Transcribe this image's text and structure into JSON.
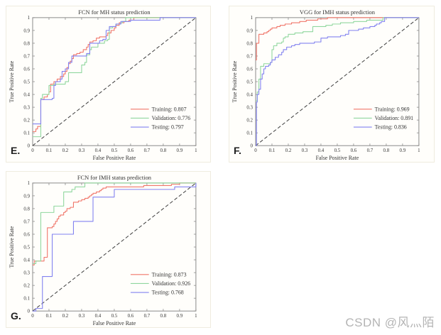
{
  "watermark": "CSDN @风灬陌",
  "colors": {
    "training": "#f0766a",
    "validation": "#90d79e",
    "testing": "#8282f0",
    "diagonal": "#3c3c3c",
    "axis": "#8a8a8a",
    "tick_text": "#333333",
    "title_text": "#1a1a1a",
    "panel_border": "#efecdf"
  },
  "chart_data": [
    {
      "id": "E",
      "panel_label": "E.",
      "type": "line",
      "curve_style": "step-after",
      "title": "FCN for MH status prediction",
      "xlabel": "False Positive Rate",
      "ylabel": "True Positive Rate",
      "xlim": [
        0,
        1
      ],
      "ylim": [
        0,
        1
      ],
      "grid": false,
      "legend_position": "lower-right-inside",
      "diagonal_reference": true,
      "xticks": [
        "0",
        "0.1",
        "0.2",
        "0.3",
        "0.4",
        "0.5",
        "0.6",
        "0.7",
        "0.8",
        "0.9",
        "1"
      ],
      "yticks": [
        "0",
        "0.1",
        "0.2",
        "0.3",
        "0.4",
        "0.5",
        "0.6",
        "0.7",
        "0.8",
        "0.9",
        "1"
      ],
      "series": [
        {
          "name": "Training",
          "auc": 0.807,
          "label": "Training: 0.807",
          "color": "#f0766a",
          "points": [
            [
              0,
              0.11
            ],
            [
              0.02,
              0.13
            ],
            [
              0.03,
              0.15
            ],
            [
              0.05,
              0.36
            ],
            [
              0.07,
              0.38
            ],
            [
              0.09,
              0.4
            ],
            [
              0.1,
              0.42
            ],
            [
              0.11,
              0.48
            ],
            [
              0.13,
              0.5
            ],
            [
              0.15,
              0.52
            ],
            [
              0.17,
              0.54
            ],
            [
              0.19,
              0.56
            ],
            [
              0.2,
              0.58
            ],
            [
              0.21,
              0.61
            ],
            [
              0.22,
              0.64
            ],
            [
              0.23,
              0.66
            ],
            [
              0.24,
              0.68
            ],
            [
              0.25,
              0.71
            ],
            [
              0.27,
              0.72
            ],
            [
              0.29,
              0.73
            ],
            [
              0.31,
              0.75
            ],
            [
              0.33,
              0.77
            ],
            [
              0.34,
              0.79
            ],
            [
              0.35,
              0.81
            ],
            [
              0.37,
              0.82
            ],
            [
              0.39,
              0.84
            ],
            [
              0.41,
              0.85
            ],
            [
              0.45,
              0.86
            ],
            [
              0.46,
              0.88
            ],
            [
              0.48,
              0.9
            ],
            [
              0.5,
              0.92
            ],
            [
              0.51,
              0.94
            ],
            [
              0.53,
              0.96
            ],
            [
              0.56,
              0.97
            ],
            [
              0.59,
              0.98
            ],
            [
              0.62,
              1.0
            ],
            [
              1.0,
              1.0
            ]
          ]
        },
        {
          "name": "Validation",
          "auc": 0.776,
          "label": "Validation: 0.776",
          "color": "#90d79e",
          "points": [
            [
              0,
              0.07
            ],
            [
              0.05,
              0.37
            ],
            [
              0.06,
              0.4
            ],
            [
              0.1,
              0.47
            ],
            [
              0.13,
              0.48
            ],
            [
              0.2,
              0.5
            ],
            [
              0.22,
              0.57
            ],
            [
              0.3,
              0.63
            ],
            [
              0.32,
              0.65
            ],
            [
              0.33,
              0.71
            ],
            [
              0.35,
              0.75
            ],
            [
              0.36,
              0.77
            ],
            [
              0.4,
              0.8
            ],
            [
              0.44,
              0.82
            ],
            [
              0.46,
              0.83
            ],
            [
              0.47,
              0.92
            ],
            [
              0.49,
              0.93
            ],
            [
              0.51,
              0.95
            ],
            [
              0.54,
              0.96
            ],
            [
              0.55,
              0.97
            ],
            [
              0.57,
              1.0
            ],
            [
              1.0,
              1.0
            ]
          ]
        },
        {
          "name": "Testing",
          "auc": 0.797,
          "label": "Testing: 0.797",
          "color": "#8282f0",
          "points": [
            [
              0,
              0.17
            ],
            [
              0.05,
              0.36
            ],
            [
              0.12,
              0.37
            ],
            [
              0.13,
              0.47
            ],
            [
              0.14,
              0.5
            ],
            [
              0.17,
              0.52
            ],
            [
              0.18,
              0.58
            ],
            [
              0.2,
              0.6
            ],
            [
              0.22,
              0.65
            ],
            [
              0.24,
              0.7
            ],
            [
              0.33,
              0.72
            ],
            [
              0.35,
              0.8
            ],
            [
              0.41,
              0.82
            ],
            [
              0.43,
              0.83
            ],
            [
              0.45,
              0.9
            ],
            [
              0.47,
              0.93
            ],
            [
              0.51,
              0.95
            ],
            [
              0.54,
              0.97
            ],
            [
              0.6,
              0.98
            ],
            [
              0.78,
              1.0
            ],
            [
              1.0,
              1.0
            ]
          ]
        }
      ]
    },
    {
      "id": "F",
      "panel_label": "F.",
      "type": "line",
      "curve_style": "step-after",
      "title": "VGG for IMH status prediction",
      "xlabel": "False Positive Rate",
      "ylabel": "True Positive Rate",
      "xlim": [
        0,
        1
      ],
      "ylim": [
        0,
        1
      ],
      "grid": false,
      "legend_position": "lower-right-inside",
      "diagonal_reference": true,
      "xticks": [
        "0",
        "0.1",
        "0.2",
        "0.3",
        "0.4",
        "0.5",
        "0.6",
        "0.7",
        "0.8",
        "0.9",
        "1"
      ],
      "yticks": [
        "0",
        "0.1",
        "0.2",
        "0.3",
        "0.4",
        "0.5",
        "0.6",
        "0.7",
        "0.8",
        "0.9",
        "1"
      ],
      "series": [
        {
          "name": "Training",
          "auc": 0.969,
          "label": "Training: 0.969",
          "color": "#f0766a",
          "points": [
            [
              0,
              0.67
            ],
            [
              0.005,
              0.8
            ],
            [
              0.02,
              0.87
            ],
            [
              0.05,
              0.88
            ],
            [
              0.07,
              0.89
            ],
            [
              0.08,
              0.9
            ],
            [
              0.09,
              0.91
            ],
            [
              0.1,
              0.92
            ],
            [
              0.13,
              0.93
            ],
            [
              0.15,
              0.94
            ],
            [
              0.18,
              0.95
            ],
            [
              0.22,
              0.96
            ],
            [
              0.27,
              0.97
            ],
            [
              0.31,
              0.98
            ],
            [
              0.38,
              0.99
            ],
            [
              0.44,
              1.0
            ],
            [
              1.0,
              1.0
            ]
          ]
        },
        {
          "name": "Validation",
          "auc": 0.891,
          "label": "Validation: 0.891",
          "color": "#90d79e",
          "points": [
            [
              0,
              0.35
            ],
            [
              0.01,
              0.42
            ],
            [
              0.02,
              0.52
            ],
            [
              0.03,
              0.62
            ],
            [
              0.05,
              0.64
            ],
            [
              0.09,
              0.65
            ],
            [
              0.1,
              0.75
            ],
            [
              0.11,
              0.78
            ],
            [
              0.13,
              0.8
            ],
            [
              0.16,
              0.81
            ],
            [
              0.17,
              0.84
            ],
            [
              0.18,
              0.85
            ],
            [
              0.2,
              0.87
            ],
            [
              0.24,
              0.88
            ],
            [
              0.29,
              0.89
            ],
            [
              0.35,
              0.93
            ],
            [
              0.43,
              0.94
            ],
            [
              0.47,
              0.95
            ],
            [
              0.52,
              0.96
            ],
            [
              0.6,
              0.97
            ],
            [
              0.68,
              0.98
            ],
            [
              0.78,
              1.0
            ],
            [
              1.0,
              1.0
            ]
          ]
        },
        {
          "name": "Testing",
          "auc": 0.836,
          "label": "Testing: 0.836",
          "color": "#8282f0",
          "points": [
            [
              0,
              0.0
            ],
            [
              0.005,
              0.34
            ],
            [
              0.01,
              0.4
            ],
            [
              0.02,
              0.44
            ],
            [
              0.03,
              0.52
            ],
            [
              0.04,
              0.56
            ],
            [
              0.05,
              0.6
            ],
            [
              0.06,
              0.62
            ],
            [
              0.08,
              0.63
            ],
            [
              0.09,
              0.65
            ],
            [
              0.1,
              0.67
            ],
            [
              0.12,
              0.69
            ],
            [
              0.14,
              0.71
            ],
            [
              0.16,
              0.73
            ],
            [
              0.17,
              0.75
            ],
            [
              0.19,
              0.77
            ],
            [
              0.22,
              0.78
            ],
            [
              0.24,
              0.79
            ],
            [
              0.27,
              0.8
            ],
            [
              0.36,
              0.81
            ],
            [
              0.4,
              0.84
            ],
            [
              0.44,
              0.85
            ],
            [
              0.52,
              0.86
            ],
            [
              0.55,
              0.87
            ],
            [
              0.57,
              0.9
            ],
            [
              0.63,
              0.91
            ],
            [
              0.66,
              0.92
            ],
            [
              0.7,
              0.93
            ],
            [
              0.73,
              0.94
            ],
            [
              0.74,
              0.95
            ],
            [
              0.76,
              0.96
            ],
            [
              0.77,
              0.97
            ],
            [
              0.79,
              1.0
            ],
            [
              1.0,
              1.0
            ]
          ]
        }
      ]
    },
    {
      "id": "G",
      "panel_label": "G.",
      "type": "line",
      "curve_style": "step-after",
      "title": "FCN for IMH status prediction",
      "xlabel": "False Positive Rate",
      "ylabel": "True Positive Rate",
      "xlim": [
        0,
        1
      ],
      "ylim": [
        0,
        1
      ],
      "grid": false,
      "legend_position": "lower-right-inside",
      "diagonal_reference": true,
      "xticks": [
        "0",
        "0.1",
        "0.2",
        "0.3",
        "0.4",
        "0.5",
        "0.6",
        "0.7",
        "0.8",
        "0.9",
        "1"
      ],
      "yticks": [
        "0",
        "0.1",
        "0.2",
        "0.3",
        "0.4",
        "0.5",
        "0.6",
        "0.7",
        "0.8",
        "0.9",
        "1"
      ],
      "series": [
        {
          "name": "Training",
          "auc": 0.873,
          "label": "Training: 0.873",
          "color": "#f0766a",
          "points": [
            [
              0,
              0.36
            ],
            [
              0.01,
              0.39
            ],
            [
              0.07,
              0.42
            ],
            [
              0.09,
              0.65
            ],
            [
              0.12,
              0.66
            ],
            [
              0.13,
              0.68
            ],
            [
              0.14,
              0.7
            ],
            [
              0.15,
              0.72
            ],
            [
              0.16,
              0.74
            ],
            [
              0.17,
              0.75
            ],
            [
              0.19,
              0.77
            ],
            [
              0.2,
              0.78
            ],
            [
              0.21,
              0.8
            ],
            [
              0.23,
              0.81
            ],
            [
              0.25,
              0.85
            ],
            [
              0.28,
              0.86
            ],
            [
              0.3,
              0.87
            ],
            [
              0.32,
              0.88
            ],
            [
              0.34,
              0.89
            ],
            [
              0.35,
              0.9
            ],
            [
              0.36,
              0.91
            ],
            [
              0.37,
              0.92
            ],
            [
              0.39,
              0.93
            ],
            [
              0.41,
              0.94
            ],
            [
              0.42,
              0.95
            ],
            [
              0.43,
              0.96
            ],
            [
              0.45,
              0.97
            ],
            [
              0.68,
              0.98
            ],
            [
              0.85,
              0.99
            ],
            [
              0.9,
              1.0
            ],
            [
              1.0,
              1.0
            ]
          ]
        },
        {
          "name": "Validation",
          "auc": 0.926,
          "label": "Validation: 0.926",
          "color": "#90d79e",
          "points": [
            [
              0,
              0.37
            ],
            [
              0.02,
              0.39
            ],
            [
              0.05,
              0.77
            ],
            [
              0.13,
              0.82
            ],
            [
              0.19,
              0.93
            ],
            [
              0.24,
              0.95
            ],
            [
              0.26,
              0.97
            ],
            [
              0.32,
              1.0
            ],
            [
              1.0,
              1.0
            ]
          ]
        },
        {
          "name": "Testing",
          "auc": 0.768,
          "label": "Testing: 0.768",
          "color": "#8282f0",
          "points": [
            [
              0,
              0.0
            ],
            [
              0.02,
              0.02
            ],
            [
              0.06,
              0.27
            ],
            [
              0.12,
              0.6
            ],
            [
              0.25,
              0.7
            ],
            [
              0.37,
              0.89
            ],
            [
              0.5,
              0.95
            ],
            [
              0.87,
              0.97
            ],
            [
              1.0,
              1.0
            ]
          ]
        }
      ]
    }
  ]
}
